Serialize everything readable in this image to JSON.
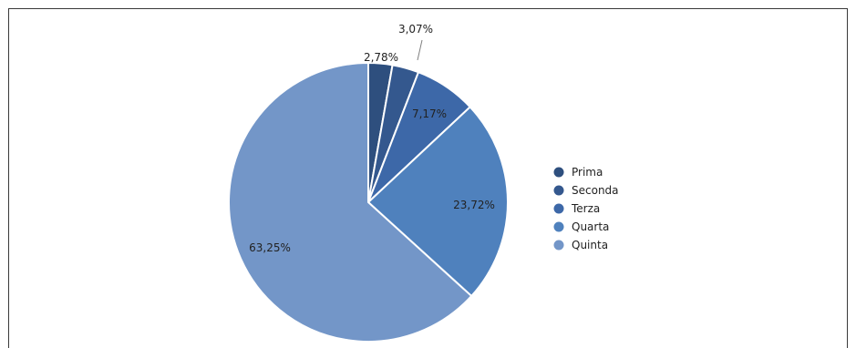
{
  "chart_data": {
    "type": "pie",
    "categories": [
      "Prima",
      "Seconda",
      "Terza",
      "Quarta",
      "Quinta"
    ],
    "values": [
      2.78,
      3.07,
      7.17,
      23.72,
      63.25
    ],
    "data_labels": [
      "2,78%",
      "3,07%",
      "7,17%",
      "23,72%",
      "63,25%"
    ],
    "colors": [
      "#2e4f7e",
      "#34588e",
      "#3d68a8",
      "#4f81bd",
      "#7396c8"
    ],
    "legend": {
      "position": "right",
      "entries": [
        "Prima",
        "Seconda",
        "Terza",
        "Quarta",
        "Quinta"
      ]
    },
    "title": "",
    "start_angle": "12 o'clock, clockwise"
  }
}
